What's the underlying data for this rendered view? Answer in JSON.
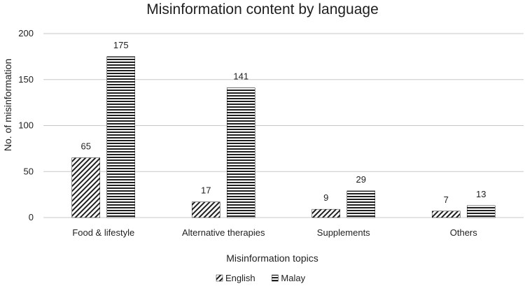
{
  "chart_data": {
    "type": "bar",
    "title": "Misinformation content by language",
    "xlabel": "Misinformation topics",
    "ylabel": "No. of misinformation",
    "categories": [
      "Food & lifestyle",
      "Alternative therapies",
      "Supplements",
      "Others"
    ],
    "series": [
      {
        "name": "English",
        "values": [
          65,
          17,
          9,
          7
        ],
        "pattern": "diagonal-hatch"
      },
      {
        "name": "Malay",
        "values": [
          175,
          141,
          29,
          13
        ],
        "pattern": "horizontal-stripes"
      }
    ],
    "ylim": [
      0,
      200
    ],
    "yticks": [
      0,
      50,
      100,
      150,
      200
    ],
    "grid": true,
    "legend": "bottom-center",
    "colors": {
      "ink": "#1f1f1f",
      "grid": "#c8c8c8"
    }
  }
}
